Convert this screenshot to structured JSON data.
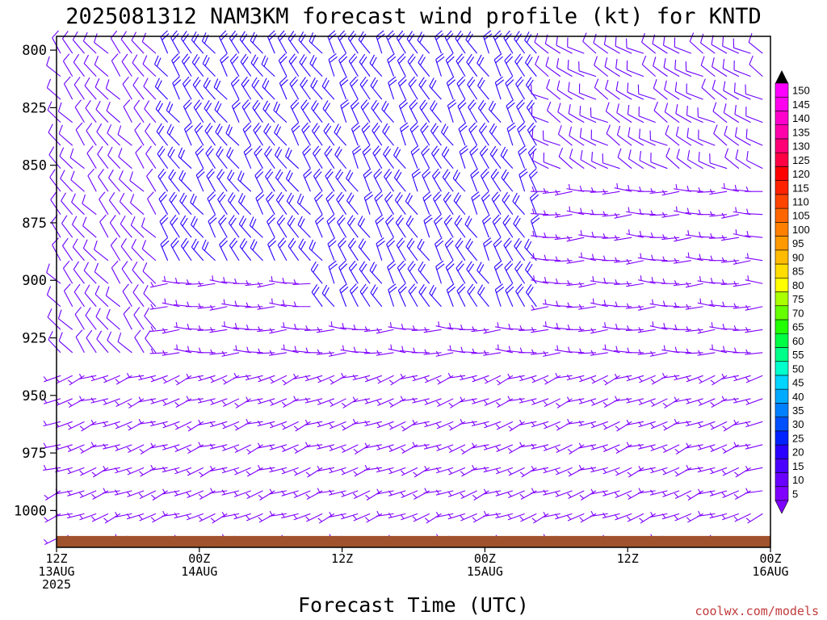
{
  "chart_data": {
    "type": "wind-barb-time-height",
    "title": "2025081312 NAM3KM forecast wind profile (kt) for KNTD",
    "xlabel": "Forecast Time (UTC)",
    "ylabel": "",
    "credit": "coolwx.com/models",
    "x_ticks": [
      {
        "hours": 0,
        "lines": [
          "12Z",
          "13AUG",
          "2025"
        ]
      },
      {
        "hours": 12,
        "lines": [
          "00Z",
          "14AUG"
        ]
      },
      {
        "hours": 24,
        "lines": [
          "12Z"
        ]
      },
      {
        "hours": 36,
        "lines": [
          "00Z",
          "15AUG"
        ]
      },
      {
        "hours": 48,
        "lines": [
          "12Z"
        ]
      },
      {
        "hours": 60,
        "lines": [
          "00Z",
          "16AUG"
        ]
      }
    ],
    "xlim_hours": [
      0,
      60
    ],
    "ylim_hpa": [
      1016,
      794
    ],
    "y_ticks": [
      800,
      825,
      850,
      875,
      900,
      925,
      950,
      975,
      1000
    ],
    "levels_hpa": [
      800,
      810,
      820,
      830,
      840,
      850,
      860,
      870,
      880,
      890,
      900,
      910,
      920,
      930,
      940,
      950,
      960,
      970,
      980,
      990,
      1000,
      1010
    ],
    "surface_pressure_hpa": 1010,
    "colorbar_kt": [
      5,
      10,
      15,
      20,
      25,
      30,
      35,
      40,
      45,
      50,
      55,
      60,
      65,
      70,
      75,
      80,
      85,
      90,
      95,
      100,
      105,
      110,
      115,
      120,
      125,
      130,
      135,
      140,
      145,
      150
    ],
    "colorbar_colors": [
      "#7f00ff",
      "#6a00ff",
      "#4b00ff",
      "#2a00ff",
      "#0022ff",
      "#0050ff",
      "#0080ff",
      "#00aaff",
      "#00d4ff",
      "#00ffcc",
      "#00ff88",
      "#00ff44",
      "#22ff00",
      "#66ff00",
      "#aaff00",
      "#ffff00",
      "#ffdd00",
      "#ffbb00",
      "#ff9900",
      "#ff8000",
      "#ff6600",
      "#ff4400",
      "#ff2200",
      "#ff0000",
      "#ff0044",
      "#ff0077",
      "#ff00aa",
      "#ff00cc",
      "#ff00ee",
      "#ff00ff"
    ],
    "ground_color": "#a0522d",
    "wind_kt_grid": "speed (kt) by level row (800 to 1010 hPa) and hourly column (0 to 60 h)",
    "wind_regimes": [
      {
        "hours": [
          0,
          8
        ],
        "above_hpa": 940,
        "dir_deg": 320,
        "speed_kt": 10
      },
      {
        "hours": [
          8,
          22
        ],
        "above_hpa": 900,
        "dir_deg": 325,
        "speed_kt": 20
      },
      {
        "hours": [
          22,
          40
        ],
        "above_hpa": 920,
        "dir_deg": 330,
        "speed_kt": 20
      },
      {
        "hours": [
          40,
          60
        ],
        "above_hpa": 860,
        "dir_deg": 300,
        "speed_kt": 10
      },
      {
        "hours": [
          0,
          60
        ],
        "below_hpa": 940,
        "dir_deg": 250,
        "speed_kt": 5
      }
    ]
  }
}
